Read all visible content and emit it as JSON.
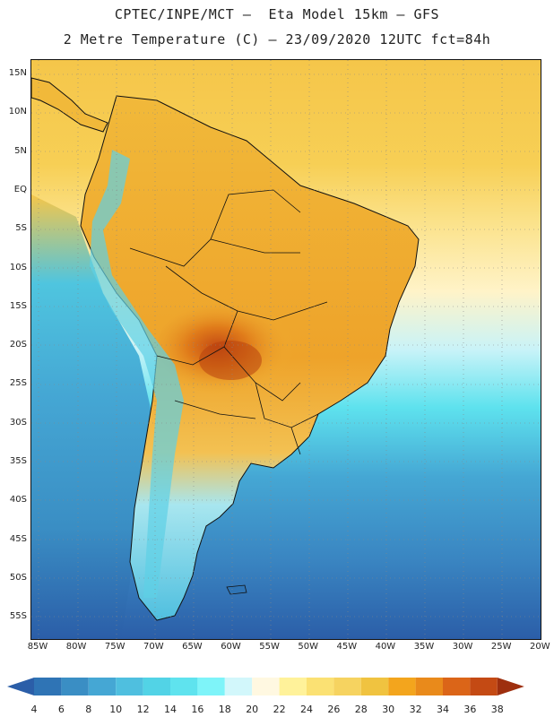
{
  "title_line1": "CPTEC/INPE/MCT –  Eta Model 15km – GFS",
  "title_line2": "2 Metre Temperature (C) – 23/09/2020 12UTC fct=84h",
  "lat_labels": [
    "15N",
    "10N",
    "5N",
    "EQ",
    "5S",
    "10S",
    "15S",
    "20S",
    "25S",
    "30S",
    "35S",
    "40S",
    "45S",
    "50S",
    "55S"
  ],
  "lon_labels": [
    "85W",
    "80W",
    "75W",
    "70W",
    "65W",
    "60W",
    "55W",
    "50W",
    "45W",
    "40W",
    "35W",
    "30W",
    "25W",
    "20W"
  ],
  "colorbar": {
    "levels": [
      "4",
      "6",
      "8",
      "10",
      "12",
      "14",
      "16",
      "18",
      "20",
      "22",
      "24",
      "26",
      "28",
      "30",
      "32",
      "34",
      "36",
      "38"
    ],
    "colors": [
      "#2b5ea8",
      "#2f74b5",
      "#3a8ec4",
      "#45a7d4",
      "#4fbfdf",
      "#52d3e6",
      "#5fe3ee",
      "#7ef4f9",
      "#d2f7fb",
      "#fff8e1",
      "#fff29a",
      "#fbe173",
      "#f6d360",
      "#f0c340",
      "#f3a51d",
      "#e98a1b",
      "#db6518",
      "#c44a14",
      "#9e2f0e"
    ]
  }
}
